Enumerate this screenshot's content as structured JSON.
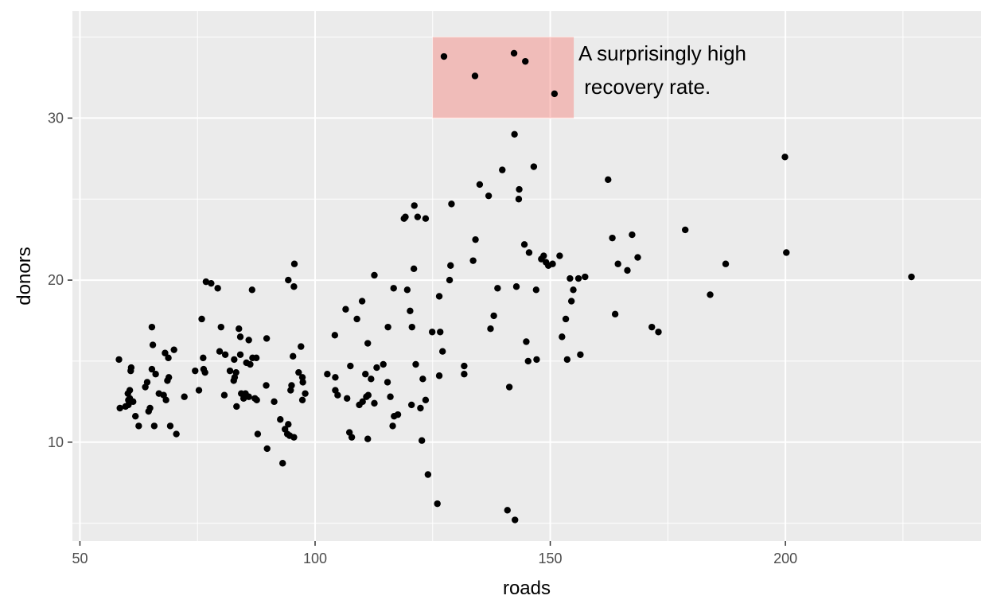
{
  "chart_data": {
    "type": "scatter",
    "xlabel": "roads",
    "ylabel": "donors",
    "xlim": [
      48.4,
      241.6
    ],
    "ylim": [
      3.9,
      36.6
    ],
    "x_ticks": [
      50,
      100,
      150,
      200
    ],
    "x_tick_labels": [
      "50",
      "100",
      "150",
      "200"
    ],
    "y_ticks": [
      10,
      20,
      30
    ],
    "y_tick_labels": [
      "10",
      "20",
      "30"
    ],
    "x_minor": [
      75,
      125,
      175,
      225
    ],
    "y_minor": [
      5,
      15,
      25,
      35
    ],
    "grid": true,
    "colors": {
      "panel": "#ebebeb",
      "grid": "#ffffff",
      "point": "#000000",
      "highlight": "#f8766d"
    },
    "highlight_rect": {
      "x": [
        125,
        155
      ],
      "y": [
        30,
        35
      ]
    },
    "annotation": {
      "x": 156,
      "y": 34.0,
      "lines": [
        "A surprisingly high",
        " recovery rate."
      ]
    },
    "points": [
      [
        58.3,
        15.1
      ],
      [
        58.5,
        12.1
      ],
      [
        59.7,
        12.2
      ],
      [
        60.2,
        13.0
      ],
      [
        60.6,
        13.2
      ],
      [
        60.8,
        14.4
      ],
      [
        60.9,
        14.6
      ],
      [
        60.6,
        12.7
      ],
      [
        60.3,
        12.6
      ],
      [
        60.3,
        12.3
      ],
      [
        61.3,
        12.5
      ],
      [
        61.8,
        11.6
      ],
      [
        62.5,
        11.0
      ],
      [
        63.9,
        13.4
      ],
      [
        64.3,
        13.7
      ],
      [
        64.6,
        11.9
      ],
      [
        64.9,
        12.1
      ],
      [
        65.3,
        17.1
      ],
      [
        65.5,
        16.0
      ],
      [
        65.3,
        14.5
      ],
      [
        66.1,
        14.2
      ],
      [
        65.8,
        11.0
      ],
      [
        66.8,
        13.0
      ],
      [
        67.8,
        12.9
      ],
      [
        68.3,
        12.6
      ],
      [
        68.1,
        15.5
      ],
      [
        68.6,
        13.8
      ],
      [
        68.9,
        14.0
      ],
      [
        68.8,
        15.2
      ],
      [
        69.2,
        11.0
      ],
      [
        70.0,
        15.7
      ],
      [
        70.5,
        10.5
      ],
      [
        72.2,
        12.8
      ],
      [
        74.5,
        14.4
      ],
      [
        75.3,
        13.2
      ],
      [
        75.9,
        17.6
      ],
      [
        76.3,
        14.5
      ],
      [
        76.2,
        15.2
      ],
      [
        76.6,
        14.3
      ],
      [
        76.8,
        19.9
      ],
      [
        77.9,
        19.8
      ],
      [
        79.3,
        19.5
      ],
      [
        79.7,
        15.6
      ],
      [
        80.0,
        17.1
      ],
      [
        80.7,
        12.9
      ],
      [
        80.9,
        15.4
      ],
      [
        81.9,
        14.4
      ],
      [
        82.7,
        13.8
      ],
      [
        82.9,
        14.0
      ],
      [
        83.2,
        14.3
      ],
      [
        82.8,
        15.1
      ],
      [
        83.3,
        12.2
      ],
      [
        83.8,
        17.0
      ],
      [
        84.1,
        16.5
      ],
      [
        84.3,
        13.0
      ],
      [
        84.1,
        15.4
      ],
      [
        84.8,
        12.7
      ],
      [
        85.2,
        13.0
      ],
      [
        85.9,
        12.8
      ],
      [
        85.4,
        14.9
      ],
      [
        85.9,
        16.3
      ],
      [
        86.6,
        19.4
      ],
      [
        86.2,
        14.8
      ],
      [
        86.7,
        15.2
      ],
      [
        87.5,
        15.2
      ],
      [
        87.2,
        12.7
      ],
      [
        87.6,
        12.6
      ],
      [
        87.8,
        10.5
      ],
      [
        89.6,
        13.5
      ],
      [
        89.7,
        16.4
      ],
      [
        89.8,
        9.6
      ],
      [
        91.3,
        12.5
      ],
      [
        92.6,
        11.4
      ],
      [
        93.1,
        8.7
      ],
      [
        93.6,
        10.8
      ],
      [
        94.1,
        10.5
      ],
      [
        94.3,
        11.1
      ],
      [
        94.3,
        20.0
      ],
      [
        94.8,
        13.2
      ],
      [
        95.0,
        13.5
      ],
      [
        95.3,
        15.3
      ],
      [
        94.6,
        10.4
      ],
      [
        95.5,
        19.6
      ],
      [
        95.5,
        10.3
      ],
      [
        95.6,
        21.0
      ],
      [
        96.5,
        14.3
      ],
      [
        97.0,
        15.9
      ],
      [
        97.3,
        14.0
      ],
      [
        97.4,
        13.7
      ],
      [
        97.3,
        12.6
      ],
      [
        97.9,
        13.0
      ],
      [
        102.6,
        14.2
      ],
      [
        104.2,
        16.6
      ],
      [
        104.3,
        14.0
      ],
      [
        104.3,
        13.2
      ],
      [
        104.8,
        12.9
      ],
      [
        106.5,
        18.2
      ],
      [
        106.8,
        12.7
      ],
      [
        107.3,
        10.6
      ],
      [
        107.5,
        14.7
      ],
      [
        107.8,
        10.3
      ],
      [
        108.9,
        17.6
      ],
      [
        109.4,
        12.3
      ],
      [
        110.0,
        18.7
      ],
      [
        110.1,
        12.5
      ],
      [
        110.7,
        14.2
      ],
      [
        111.2,
        16.1
      ],
      [
        111.2,
        10.2
      ],
      [
        110.9,
        12.8
      ],
      [
        111.3,
        12.9
      ],
      [
        111.9,
        13.9
      ],
      [
        112.6,
        20.3
      ],
      [
        112.6,
        12.4
      ],
      [
        113.1,
        14.6
      ],
      [
        114.5,
        14.8
      ],
      [
        115.4,
        13.7
      ],
      [
        115.5,
        17.1
      ],
      [
        116.0,
        12.8
      ],
      [
        116.5,
        11.0
      ],
      [
        116.7,
        19.5
      ],
      [
        116.8,
        11.6
      ],
      [
        117.6,
        11.7
      ],
      [
        118.9,
        23.8
      ],
      [
        119.2,
        23.9
      ],
      [
        119.6,
        19.4
      ],
      [
        120.2,
        18.1
      ],
      [
        120.5,
        12.3
      ],
      [
        120.6,
        17.1
      ],
      [
        121.0,
        20.7
      ],
      [
        121.1,
        24.6
      ],
      [
        121.4,
        14.8
      ],
      [
        121.8,
        23.9
      ],
      [
        122.4,
        12.1
      ],
      [
        122.7,
        10.1
      ],
      [
        122.9,
        13.9
      ],
      [
        123.5,
        23.8
      ],
      [
        123.5,
        12.6
      ],
      [
        124.0,
        8.0
      ],
      [
        124.9,
        16.8
      ],
      [
        126.0,
        6.2
      ],
      [
        126.4,
        14.1
      ],
      [
        126.4,
        19.0
      ],
      [
        126.6,
        16.8
      ],
      [
        127.1,
        15.6
      ],
      [
        128.6,
        20.0
      ],
      [
        128.8,
        20.9
      ],
      [
        129.0,
        24.7
      ],
      [
        131.7,
        14.7
      ],
      [
        131.7,
        14.2
      ],
      [
        133.6,
        21.2
      ],
      [
        134.1,
        22.5
      ],
      [
        135.0,
        25.9
      ],
      [
        136.9,
        25.2
      ],
      [
        137.3,
        17.0
      ],
      [
        138.0,
        17.8
      ],
      [
        138.8,
        19.5
      ],
      [
        139.8,
        26.8
      ],
      [
        140.9,
        5.8
      ],
      [
        141.3,
        13.4
      ],
      [
        142.4,
        29.0
      ],
      [
        142.5,
        5.2
      ],
      [
        142.8,
        19.6
      ],
      [
        143.3,
        25.0
      ],
      [
        143.4,
        25.6
      ],
      [
        144.5,
        22.2
      ],
      [
        144.9,
        16.2
      ],
      [
        145.3,
        15.0
      ],
      [
        145.5,
        21.7
      ],
      [
        146.5,
        27.0
      ],
      [
        147.0,
        19.4
      ],
      [
        147.1,
        15.1
      ],
      [
        148.1,
        21.3
      ],
      [
        148.6,
        21.5
      ],
      [
        149.1,
        21.1
      ],
      [
        149.6,
        20.9
      ],
      [
        150.5,
        21.0
      ],
      [
        152.0,
        21.5
      ],
      [
        152.5,
        16.5
      ],
      [
        153.3,
        17.6
      ],
      [
        153.6,
        15.1
      ],
      [
        154.2,
        20.1
      ],
      [
        154.5,
        18.7
      ],
      [
        154.9,
        19.4
      ],
      [
        156.0,
        20.1
      ],
      [
        156.4,
        15.4
      ],
      [
        157.4,
        20.2
      ],
      [
        162.3,
        26.2
      ],
      [
        163.2,
        22.6
      ],
      [
        163.8,
        17.9
      ],
      [
        164.4,
        21.0
      ],
      [
        166.4,
        20.6
      ],
      [
        167.4,
        22.8
      ],
      [
        168.6,
        21.4
      ],
      [
        171.6,
        17.1
      ],
      [
        173.0,
        16.8
      ],
      [
        178.7,
        23.1
      ],
      [
        184.0,
        19.1
      ],
      [
        187.3,
        21.0
      ],
      [
        199.9,
        27.6
      ],
      [
        200.2,
        21.7
      ],
      [
        226.8,
        20.2
      ],
      [
        127.4,
        33.8
      ],
      [
        134.0,
        32.6
      ],
      [
        142.3,
        34.0
      ],
      [
        144.7,
        33.5
      ],
      [
        150.9,
        31.5
      ]
    ]
  }
}
